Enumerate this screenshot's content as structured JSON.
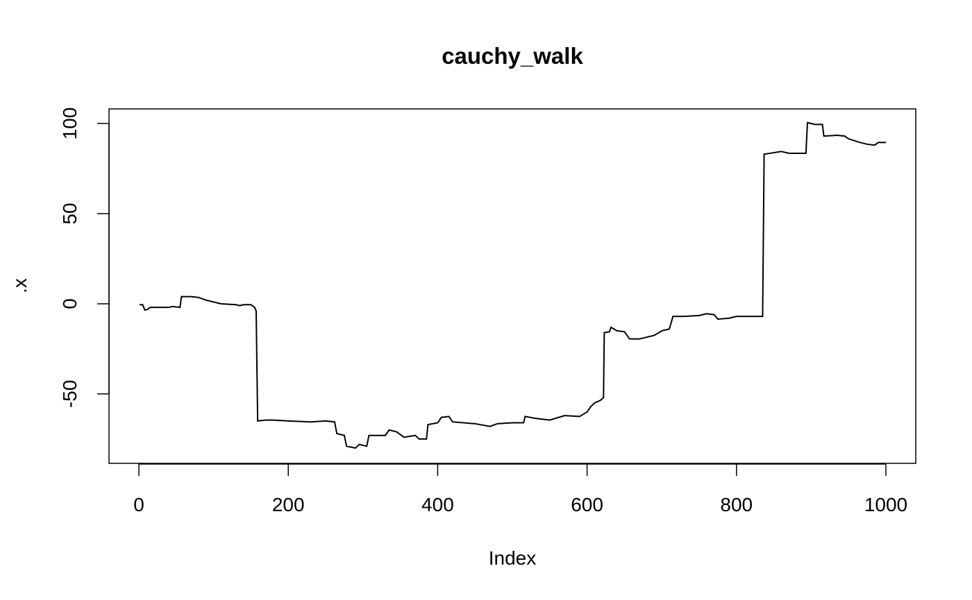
{
  "chart_data": {
    "type": "line",
    "title": "cauchy_walk",
    "x_label": "Index",
    "y_label": ".x",
    "x": [
      1,
      5,
      8,
      12,
      15,
      40,
      45,
      55,
      57,
      70,
      80,
      90,
      100,
      110,
      130,
      135,
      140,
      150,
      155,
      157,
      159,
      170,
      180,
      200,
      230,
      250,
      262,
      265,
      275,
      278,
      290,
      295,
      305,
      308,
      320,
      330,
      335,
      345,
      355,
      370,
      375,
      385,
      387,
      400,
      405,
      415,
      420,
      450,
      470,
      480,
      500,
      515,
      517,
      530,
      550,
      570,
      590,
      600,
      605,
      610,
      618,
      622,
      623,
      630,
      632,
      640,
      650,
      657,
      670,
      680,
      690,
      700,
      710,
      715,
      730,
      750,
      760,
      770,
      775,
      790,
      800,
      820,
      835,
      837,
      845,
      860,
      870,
      880,
      893,
      895,
      905,
      915,
      917,
      935,
      945,
      950,
      965,
      975,
      985,
      990,
      1000
    ],
    "series": [
      {
        "name": "cauchy_walk",
        "color": "#000000",
        "values": [
          -0.5,
          -0.5,
          -3.5,
          -3,
          -2,
          -2,
          -1.5,
          -2,
          4,
          4,
          3.5,
          2,
          1,
          0,
          -0.5,
          -1,
          -0.5,
          -0.5,
          -2,
          -4,
          -65,
          -64.5,
          -64.5,
          -65,
          -65.5,
          -65,
          -65.5,
          -72,
          -73,
          -79,
          -80,
          -78,
          -79,
          -73,
          -73,
          -73,
          -70,
          -71,
          -74,
          -73,
          -75,
          -75,
          -67,
          -66,
          -63,
          -62.5,
          -65.5,
          -66.5,
          -68,
          -66.5,
          -66,
          -66,
          -62.5,
          -63.5,
          -64.5,
          -62,
          -62.5,
          -60,
          -57,
          -55,
          -53.5,
          -52,
          -16,
          -15.5,
          -13,
          -15,
          -15.5,
          -19.5,
          -19.5,
          -18.5,
          -17.5,
          -15,
          -14,
          -7,
          -7,
          -6.5,
          -5.5,
          -6,
          -8.5,
          -8,
          -7,
          -7,
          -7,
          83,
          83.5,
          84.5,
          83.5,
          83.5,
          83.5,
          100.5,
          99.5,
          99.5,
          93,
          93.5,
          93,
          91.5,
          89.5,
          88.5,
          88,
          89.5,
          89.5
        ]
      }
    ],
    "xlim": [
      -40,
      1040
    ],
    "ylim": [
      -88.5,
      108.1
    ],
    "xticks": [
      0,
      200,
      400,
      600,
      800,
      1000
    ],
    "yticks": [
      -50,
      0,
      50,
      100
    ]
  }
}
